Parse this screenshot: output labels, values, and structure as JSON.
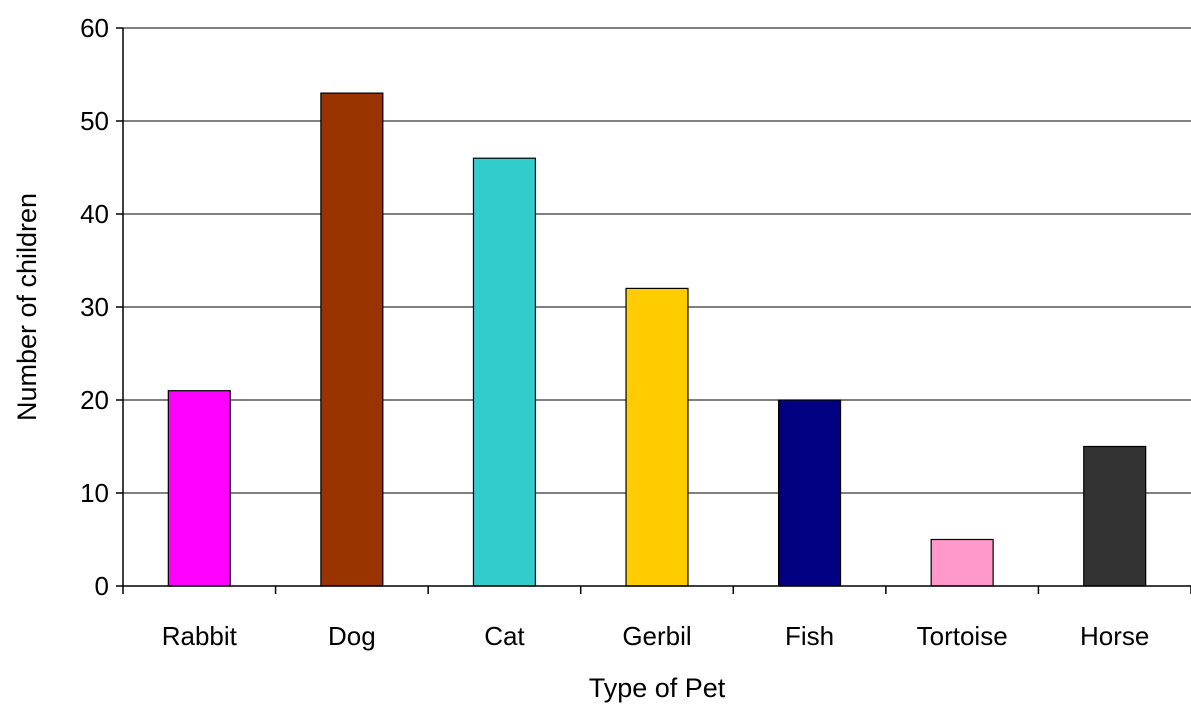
{
  "chart_data": {
    "type": "bar",
    "title": "",
    "xlabel": "Type of Pet",
    "ylabel": "Number of children",
    "categories": [
      "Rabbit",
      "Dog",
      "Cat",
      "Gerbil",
      "Fish",
      "Tortoise",
      "Horse"
    ],
    "values": [
      21,
      53,
      46,
      32,
      20,
      5,
      15
    ],
    "colors": [
      "#ff00ff",
      "#993300",
      "#33cccc",
      "#ffcc00",
      "#000080",
      "#ff99cc",
      "#333333"
    ],
    "ylim": [
      0,
      60
    ],
    "yticks": [
      0,
      10,
      20,
      30,
      40,
      50,
      60
    ],
    "grid": true,
    "legend": "none"
  }
}
